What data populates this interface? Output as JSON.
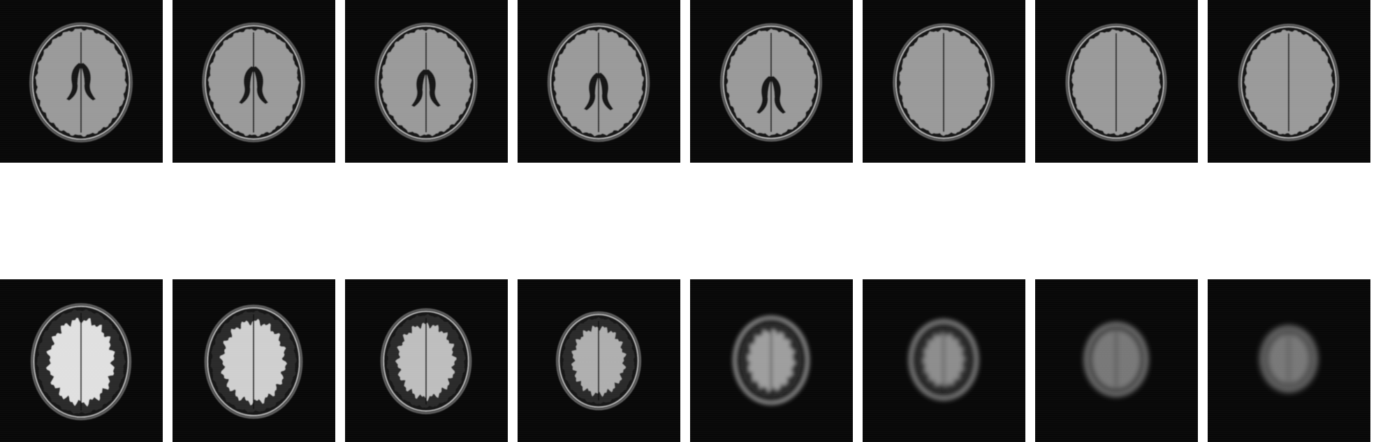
{
  "grid": {
    "rows": 2,
    "columns": 8,
    "description_free": true
  },
  "slices": [
    {
      "row": 0,
      "col": 0,
      "level": 0.0
    },
    {
      "row": 0,
      "col": 1,
      "level": 0.07
    },
    {
      "row": 0,
      "col": 2,
      "level": 0.13
    },
    {
      "row": 0,
      "col": 3,
      "level": 0.2
    },
    {
      "row": 0,
      "col": 4,
      "level": 0.27
    },
    {
      "row": 0,
      "col": 5,
      "level": 0.33
    },
    {
      "row": 0,
      "col": 6,
      "level": 0.4
    },
    {
      "row": 0,
      "col": 7,
      "level": 0.47
    },
    {
      "row": 1,
      "col": 0,
      "level": 0.53
    },
    {
      "row": 1,
      "col": 1,
      "level": 0.6
    },
    {
      "row": 1,
      "col": 2,
      "level": 0.67
    },
    {
      "row": 1,
      "col": 3,
      "level": 0.73
    },
    {
      "row": 1,
      "col": 4,
      "level": 0.8
    },
    {
      "row": 1,
      "col": 5,
      "level": 0.87
    },
    {
      "row": 1,
      "col": 6,
      "level": 0.93
    },
    {
      "row": 1,
      "col": 7,
      "level": 1.0
    }
  ],
  "colors": {
    "background": "#ffffff",
    "tile_background": "#080808",
    "skull": "#bdbdbd",
    "brain": "#9a9a9a",
    "csf": "#141414",
    "bright_gyri": "#e8e8e8"
  }
}
